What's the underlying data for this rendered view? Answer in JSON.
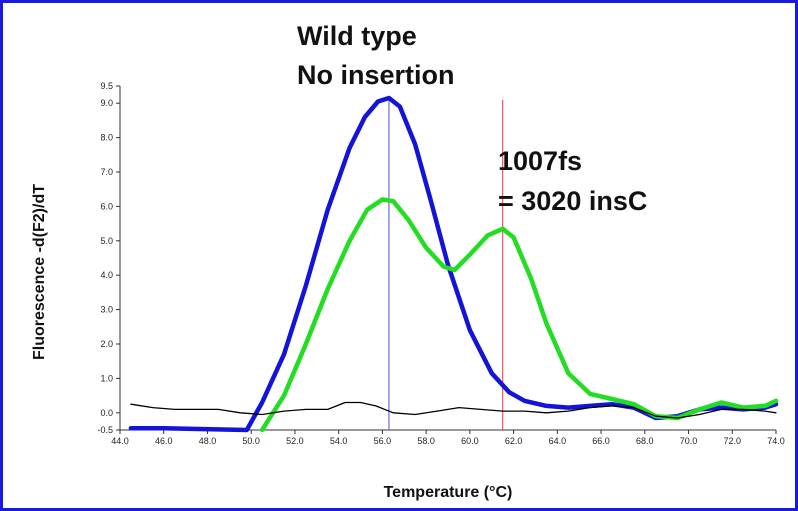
{
  "chart_data": {
    "type": "line",
    "title": "",
    "xlabel": "Temperature (°C)",
    "ylabel": "Fluorescence -d(F2)/dT",
    "xlim": [
      44.0,
      74.0
    ],
    "ylim": [
      -0.5,
      9.5
    ],
    "x_ticks": [
      "44.0",
      "46.0",
      "48.0",
      "50.0",
      "52.0",
      "54.0",
      "56.0",
      "58.0",
      "60.0",
      "62.0",
      "64.0",
      "66.0",
      "68.0",
      "70.0",
      "72.0",
      "74.0"
    ],
    "y_ticks": [
      "-0.5",
      "0.0",
      "1.0",
      "2.0",
      "3.0",
      "4.0",
      "5.0",
      "6.0",
      "7.0",
      "8.0",
      "9.0",
      "9.5"
    ],
    "grid": false,
    "annotations": [
      {
        "lines": [
          "Wild type",
          "No insertion"
        ]
      },
      {
        "lines": [
          "1007fs",
          "= 3020 insC"
        ]
      }
    ],
    "vlines": [
      {
        "x": 56.3,
        "color": "#6a6ae0"
      },
      {
        "x": 61.5,
        "color": "#ee5555"
      }
    ],
    "series": [
      {
        "color": "#1414d8",
        "x": [
          44.5,
          45.5,
          46.0,
          49.8,
          50.5,
          51.5,
          52.5,
          53.5,
          54.5,
          55.2,
          55.8,
          56.3,
          56.8,
          57.5,
          58.2,
          59.0,
          60.0,
          61.0,
          61.8,
          62.5,
          63.5,
          64.5,
          65.5,
          66.5,
          67.5,
          68.5,
          69.5,
          70.5,
          71.5,
          72.5,
          73.5,
          74.0
        ],
        "values": [
          -0.45,
          -0.45,
          -0.45,
          -0.5,
          0.3,
          1.7,
          3.7,
          5.9,
          7.7,
          8.6,
          9.05,
          9.15,
          8.9,
          7.8,
          6.2,
          4.3,
          2.4,
          1.15,
          0.6,
          0.35,
          0.2,
          0.15,
          0.2,
          0.25,
          0.15,
          -0.15,
          -0.1,
          0.1,
          0.15,
          0.1,
          0.15,
          0.25
        ]
      },
      {
        "color": "#22dd22",
        "x": [
          50.5,
          51.5,
          52.5,
          53.5,
          54.5,
          55.3,
          56.0,
          56.5,
          57.2,
          58.0,
          58.8,
          59.3,
          60.0,
          60.8,
          61.5,
          62.0,
          62.8,
          63.5,
          64.5,
          65.5,
          66.5,
          67.5,
          68.5,
          69.5,
          70.5,
          71.5,
          72.5,
          73.5,
          74.0
        ],
        "values": [
          -0.5,
          0.5,
          2.0,
          3.6,
          5.0,
          5.9,
          6.2,
          6.15,
          5.6,
          4.8,
          4.25,
          4.15,
          4.6,
          5.15,
          5.35,
          5.1,
          3.9,
          2.6,
          1.15,
          0.55,
          0.4,
          0.25,
          -0.1,
          -0.15,
          0.1,
          0.3,
          0.15,
          0.2,
          0.35
        ]
      },
      {
        "color": "#000000",
        "x": [
          44.5,
          45.5,
          46.5,
          47.5,
          48.5,
          49.5,
          50.5,
          51.5,
          52.5,
          53.5,
          54.3,
          55.0,
          55.7,
          56.5,
          57.5,
          58.5,
          59.5,
          60.5,
          61.5,
          62.5,
          63.5,
          64.5,
          65.5,
          66.5,
          67.5,
          68.5,
          69.5,
          70.5,
          71.5,
          72.5,
          73.5,
          74.0
        ],
        "values": [
          0.25,
          0.15,
          0.1,
          0.1,
          0.1,
          0.0,
          -0.05,
          0.05,
          0.1,
          0.1,
          0.3,
          0.3,
          0.2,
          0.0,
          -0.05,
          0.05,
          0.15,
          0.1,
          0.05,
          0.05,
          0.0,
          0.05,
          0.15,
          0.2,
          0.15,
          -0.1,
          -0.15,
          -0.05,
          0.1,
          0.1,
          0.05,
          0.0
        ]
      }
    ]
  }
}
